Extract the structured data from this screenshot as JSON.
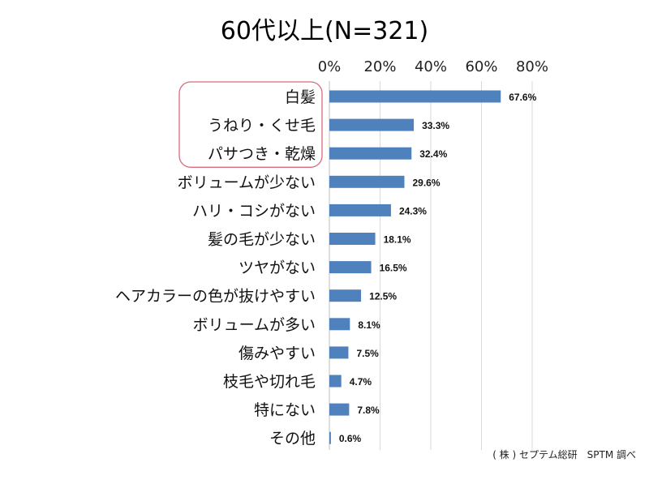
{
  "title": "60代以上(N=321)",
  "source": "( 株 ) セプテム総研　SPTM 調べ",
  "colors": {
    "bar": "#4f81bd",
    "grid": "#d9d9d9",
    "highlight": "#d86a7c"
  },
  "chart_data": {
    "type": "bar",
    "orientation": "horizontal",
    "title": "60代以上(N=321)",
    "categories": [
      "白髪",
      "うねり・くせ毛",
      "パサつき・乾燥",
      "ボリュームが少ない",
      "ハリ・コシがない",
      "髪の毛が少ない",
      "ツヤがない",
      "ヘアカラーの色が抜けやすい",
      "ボリュームが多い",
      "傷みやすい",
      "枝毛や切れ毛",
      "特にない",
      "その他"
    ],
    "values": [
      67.6,
      33.3,
      32.4,
      29.6,
      24.3,
      18.1,
      16.5,
      12.5,
      8.1,
      7.5,
      4.7,
      7.8,
      0.6
    ],
    "value_labels": [
      "67.6%",
      "33.3%",
      "32.4%",
      "29.6%",
      "24.3%",
      "18.1%",
      "16.5%",
      "12.5%",
      "8.1%",
      "7.5%",
      "4.7%",
      "7.8%",
      "0.6%"
    ],
    "x_ticks": [
      "0%",
      "20%",
      "40%",
      "60%",
      "80%"
    ],
    "xlim": [
      0,
      80
    ],
    "grid": true,
    "highlighted_categories": [
      "白髪",
      "うねり・くせ毛",
      "パサつき・乾燥"
    ]
  }
}
